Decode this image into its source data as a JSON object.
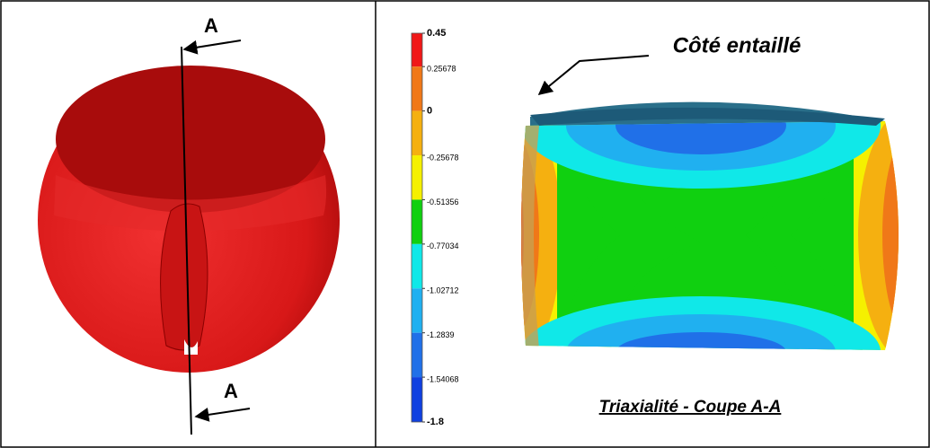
{
  "left_panel": {
    "section_label_top": "A",
    "section_label_bottom": "A"
  },
  "colorbar": {
    "lim": [
      -1.8,
      0.45
    ],
    "ticks": [
      0.45,
      0.25678,
      0,
      -0.25678,
      -0.51356,
      -0.77034,
      -1.02712,
      -1.2839,
      -1.54068,
      -1.8
    ],
    "colors": [
      "#f01818",
      "#f07818",
      "#f5b010",
      "#f5f000",
      "#10d010",
      "#10e8e8",
      "#20b0f0",
      "#2070e8",
      "#1040e0"
    ]
  },
  "right_panel": {
    "annotation": "Côté entaillé",
    "caption": "Triaxialité - Coupe A-A"
  }
}
